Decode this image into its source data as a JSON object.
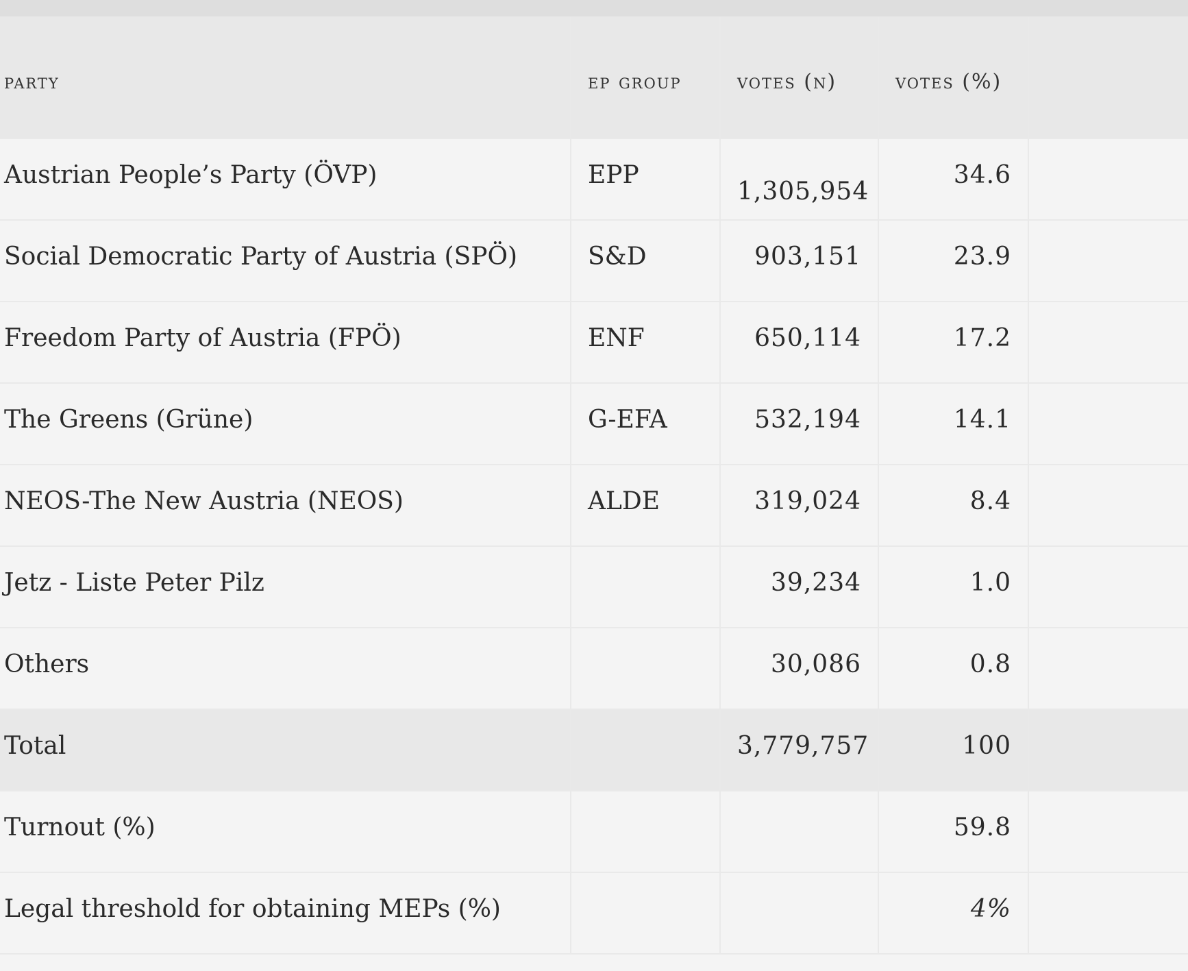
{
  "table": {
    "headers": {
      "party": "PARTY",
      "ep_group": "EP GROUP",
      "votes_n": "VOTES (N)",
      "votes_pct": "VOTES (%)"
    },
    "rows": [
      {
        "party": "Austrian People’s Party (ÖVP)",
        "ep_group": "EPP",
        "votes_n": "1,305,954",
        "votes_pct": "34.6"
      },
      {
        "party": "Social Democratic Party of Austria (SPÖ)",
        "ep_group": "S&D",
        "votes_n": "903,151",
        "votes_pct": "23.9"
      },
      {
        "party": "Freedom Party of Austria (FPÖ)",
        "ep_group": "ENF",
        "votes_n": "650,114",
        "votes_pct": "17.2"
      },
      {
        "party": "The Greens (Grüne)",
        "ep_group": "G-EFA",
        "votes_n": "532,194",
        "votes_pct": "14.1"
      },
      {
        "party": "NEOS-The New Austria (NEOS)",
        "ep_group": "ALDE",
        "votes_n": "319,024",
        "votes_pct": "8.4"
      },
      {
        "party": "Jetz - Liste Peter Pilz",
        "ep_group": "",
        "votes_n": "39,234",
        "votes_pct": "1.0"
      },
      {
        "party": "Others",
        "ep_group": "",
        "votes_n": "30,086",
        "votes_pct": "0.8"
      }
    ],
    "total": {
      "party": "Total",
      "ep_group": "",
      "votes_n": "3,779,757",
      "votes_pct": "100"
    },
    "turnout": {
      "party": "Turnout (%)",
      "votes_pct": "59.8"
    },
    "threshold": {
      "party": "Legal threshold for obtaining MEPs (%)",
      "votes_pct": "4%"
    }
  }
}
